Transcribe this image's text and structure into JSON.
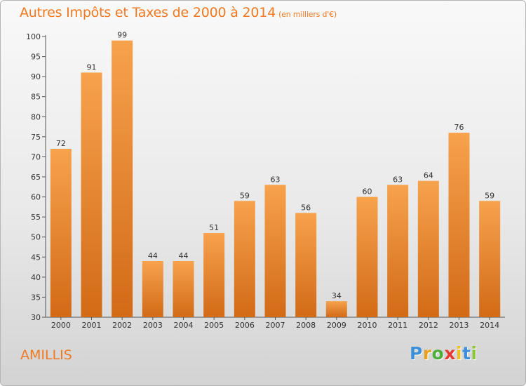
{
  "title": "Autres Impôts et Taxes de 2000 à 2014",
  "unit": "(en milliers d'€)",
  "commune": "AMILLIS",
  "logo": {
    "letters": [
      "P",
      "r",
      "o",
      "x",
      "i",
      "t",
      "i"
    ],
    "colors": [
      "#3c8fd8",
      "#e8a21a",
      "#4caf3a",
      "#e33b30",
      "#f0c020",
      "#3c8fd8",
      "#8cc63f"
    ]
  },
  "colors": {
    "accent": "#f07820",
    "bar_light": "#f7a24d",
    "bar_dark": "#d26a16"
  },
  "chart_data": {
    "type": "bar",
    "categories": [
      "2000",
      "2001",
      "2002",
      "2003",
      "2004",
      "2005",
      "2006",
      "2007",
      "2008",
      "2009",
      "2010",
      "2011",
      "2012",
      "2013",
      "2014"
    ],
    "values": [
      72,
      91,
      99,
      44,
      44,
      51,
      59,
      63,
      56,
      34,
      60,
      63,
      64,
      76,
      59
    ],
    "ylim": [
      30,
      100
    ],
    "yticks": [
      30,
      35,
      40,
      45,
      50,
      55,
      60,
      65,
      70,
      75,
      80,
      85,
      90,
      95,
      100
    ],
    "grid": false
  }
}
